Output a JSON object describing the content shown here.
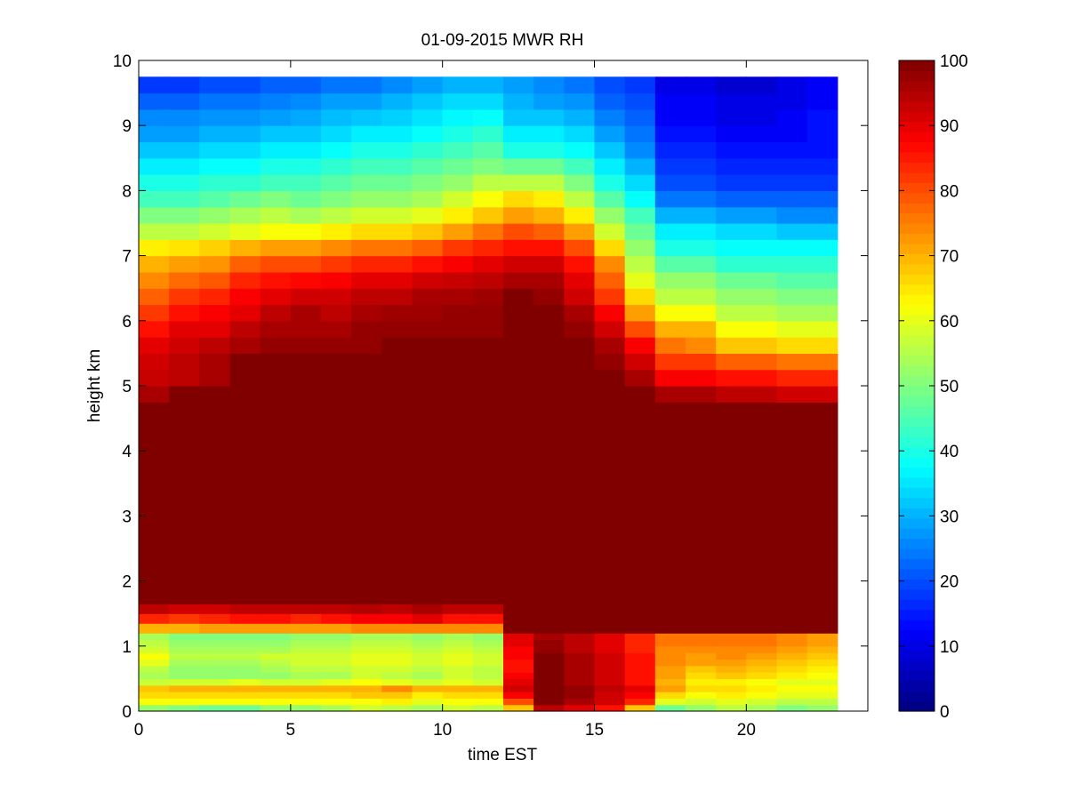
{
  "chart_data": {
    "type": "heatmap",
    "title": "01-09-2015 MWR RH",
    "xlabel": "time EST",
    "ylabel": "height km",
    "xlim": [
      0,
      24
    ],
    "ylim": [
      0,
      10
    ],
    "xticks": [
      0,
      5,
      10,
      15,
      20
    ],
    "yticks": [
      0,
      1,
      2,
      3,
      4,
      5,
      6,
      7,
      8,
      9,
      10
    ],
    "x_centers": [
      0.5,
      1.5,
      2.5,
      3.5,
      4.5,
      5.5,
      6.5,
      7.5,
      8.5,
      9.5,
      10.5,
      11.5,
      12.5,
      13.5,
      14.5,
      15.5,
      16.5,
      17.5,
      18.5,
      19.5,
      20.5,
      21.5,
      22.5,
      23.5
    ],
    "heights_km": [
      0,
      0.1,
      0.2,
      0.3,
      0.4,
      0.5,
      0.6,
      0.7,
      0.8,
      0.9,
      1.0,
      1.1,
      1.2,
      1.35,
      1.5,
      1.65,
      1.8,
      2.0,
      2.25,
      2.5,
      2.75,
      3.0,
      3.25,
      3.5,
      3.75,
      4.0,
      4.25,
      4.5,
      4.75,
      5.0,
      5.25,
      5.5,
      5.75,
      6.0,
      6.25,
      6.5,
      6.75,
      7.0,
      7.25,
      7.5,
      7.75,
      8.0,
      8.25,
      8.5,
      8.75,
      9.0,
      9.25,
      9.5,
      9.75
    ],
    "value_label": "RH (%)",
    "rh_profiles": [
      [
        52,
        62,
        66,
        68,
        57,
        54,
        56,
        60,
        62,
        58,
        56,
        54,
        70,
        84,
        94,
        100,
        100,
        100,
        100,
        100,
        100,
        100,
        100,
        100,
        100,
        100,
        100,
        100,
        96,
        93,
        92,
        90,
        86,
        82,
        78,
        74,
        70,
        64,
        56,
        50,
        44,
        40,
        36,
        32,
        28,
        26,
        22,
        18,
        18
      ],
      [
        50,
        62,
        66,
        70,
        58,
        52,
        52,
        54,
        56,
        54,
        52,
        50,
        70,
        82,
        92,
        100,
        100,
        100,
        100,
        100,
        100,
        100,
        100,
        100,
        100,
        100,
        100,
        100,
        100,
        94,
        94,
        92,
        90,
        86,
        82,
        77,
        72,
        65,
        56,
        50,
        44,
        40,
        36,
        32,
        28,
        26,
        22,
        18,
        18
      ],
      [
        48,
        62,
        66,
        70,
        58,
        52,
        52,
        54,
        56,
        54,
        52,
        50,
        72,
        84,
        92,
        100,
        100,
        100,
        100,
        100,
        100,
        100,
        100,
        100,
        100,
        100,
        100,
        100,
        100,
        96,
        96,
        94,
        90,
        88,
        84,
        79,
        73,
        67,
        58,
        52,
        46,
        42,
        38,
        34,
        30,
        27,
        24,
        20,
        20
      ],
      [
        48,
        62,
        66,
        70,
        60,
        52,
        52,
        54,
        56,
        54,
        52,
        50,
        72,
        86,
        94,
        100,
        100,
        100,
        100,
        100,
        100,
        100,
        100,
        100,
        100,
        100,
        100,
        100,
        100,
        100,
        100,
        96,
        94,
        90,
        88,
        84,
        78,
        70,
        60,
        54,
        48,
        42,
        38,
        34,
        30,
        27,
        24,
        20,
        20
      ],
      [
        52,
        62,
        66,
        70,
        58,
        52,
        54,
        56,
        58,
        54,
        52,
        50,
        72,
        86,
        94,
        100,
        100,
        100,
        100,
        100,
        100,
        100,
        100,
        100,
        100,
        100,
        100,
        100,
        100,
        100,
        100,
        98,
        96,
        94,
        90,
        86,
        80,
        72,
        62,
        56,
        50,
        44,
        40,
        36,
        32,
        28,
        25,
        22,
        22
      ],
      [
        52,
        62,
        66,
        70,
        58,
        54,
        56,
        58,
        58,
        56,
        54,
        52,
        72,
        84,
        94,
        100,
        100,
        100,
        100,
        100,
        100,
        100,
        100,
        100,
        100,
        100,
        100,
        100,
        100,
        100,
        100,
        98,
        96,
        96,
        92,
        87,
        80,
        72,
        62,
        54,
        48,
        44,
        40,
        36,
        32,
        29,
        26,
        22,
        22
      ],
      [
        54,
        62,
        66,
        70,
        60,
        54,
        56,
        58,
        58,
        56,
        54,
        52,
        72,
        86,
        94,
        100,
        100,
        100,
        100,
        100,
        100,
        100,
        100,
        100,
        100,
        100,
        100,
        100,
        100,
        100,
        100,
        98,
        96,
        94,
        92,
        88,
        82,
        74,
        64,
        56,
        50,
        46,
        42,
        38,
        34,
        31,
        28,
        24,
        24
      ],
      [
        58,
        62,
        68,
        70,
        62,
        58,
        58,
        60,
        60,
        58,
        56,
        54,
        74,
        88,
        95,
        100,
        100,
        100,
        100,
        100,
        100,
        100,
        100,
        100,
        100,
        100,
        100,
        100,
        100,
        100,
        100,
        98,
        98,
        96,
        94,
        90,
        84,
        76,
        66,
        58,
        52,
        48,
        44,
        40,
        36,
        32,
        28,
        24,
        24
      ],
      [
        56,
        64,
        68,
        74,
        60,
        56,
        58,
        60,
        60,
        58,
        56,
        54,
        74,
        88,
        94,
        100,
        100,
        100,
        100,
        100,
        100,
        100,
        100,
        100,
        100,
        100,
        100,
        100,
        100,
        100,
        100,
        100,
        98,
        97,
        94,
        90,
        84,
        76,
        66,
        58,
        52,
        48,
        44,
        40,
        36,
        33,
        30,
        26,
        26
      ],
      [
        54,
        60,
        64,
        70,
        58,
        54,
        56,
        58,
        58,
        56,
        54,
        52,
        74,
        90,
        96,
        100,
        100,
        100,
        100,
        100,
        100,
        100,
        100,
        100,
        100,
        100,
        100,
        100,
        100,
        100,
        100,
        100,
        98,
        97,
        96,
        92,
        86,
        78,
        68,
        60,
        54,
        50,
        46,
        42,
        38,
        35,
        32,
        28,
        28
      ],
      [
        58,
        62,
        66,
        70,
        60,
        58,
        58,
        60,
        60,
        58,
        56,
        54,
        74,
        86,
        94,
        100,
        100,
        100,
        100,
        100,
        100,
        100,
        100,
        100,
        100,
        100,
        100,
        100,
        100,
        100,
        100,
        100,
        98,
        98,
        96,
        93,
        88,
        82,
        72,
        64,
        58,
        52,
        48,
        44,
        40,
        37,
        34,
        30,
        30
      ],
      [
        56,
        62,
        66,
        70,
        58,
        56,
        56,
        58,
        58,
        56,
        54,
        52,
        74,
        86,
        94,
        100,
        100,
        100,
        100,
        100,
        100,
        100,
        100,
        100,
        100,
        100,
        100,
        100,
        100,
        100,
        100,
        100,
        98,
        98,
        97,
        94,
        90,
        84,
        76,
        68,
        62,
        56,
        50,
        46,
        42,
        38,
        34,
        30,
        30
      ],
      [
        68,
        80,
        88,
        92,
        90,
        88,
        86,
        86,
        88,
        88,
        90,
        90,
        100,
        100,
        100,
        100,
        100,
        100,
        100,
        100,
        100,
        100,
        100,
        100,
        100,
        100,
        100,
        100,
        100,
        100,
        100,
        100,
        100,
        100,
        100,
        96,
        92,
        86,
        80,
        72,
        66,
        56,
        48,
        40,
        36,
        32,
        30,
        28,
        28
      ],
      [
        94,
        100,
        100,
        100,
        100,
        100,
        100,
        100,
        100,
        98,
        98,
        96,
        100,
        100,
        100,
        100,
        100,
        100,
        100,
        100,
        100,
        100,
        100,
        100,
        100,
        100,
        100,
        100,
        100,
        100,
        100,
        100,
        100,
        100,
        98,
        96,
        92,
        86,
        78,
        70,
        64,
        56,
        48,
        40,
        36,
        32,
        28,
        26,
        26
      ],
      [
        90,
        96,
        98,
        98,
        96,
        96,
        96,
        96,
        96,
        94,
        94,
        94,
        100,
        100,
        100,
        100,
        100,
        100,
        100,
        100,
        100,
        100,
        100,
        100,
        100,
        100,
        100,
        100,
        100,
        100,
        100,
        100,
        98,
        96,
        92,
        90,
        86,
        80,
        72,
        64,
        56,
        50,
        44,
        38,
        34,
        30,
        27,
        24,
        24
      ],
      [
        86,
        92,
        92,
        94,
        92,
        92,
        92,
        92,
        92,
        90,
        90,
        90,
        100,
        100,
        100,
        100,
        100,
        100,
        100,
        100,
        100,
        100,
        100,
        100,
        100,
        100,
        100,
        100,
        100,
        100,
        98,
        96,
        92,
        88,
        82,
        78,
        74,
        66,
        58,
        52,
        46,
        40,
        36,
        32,
        28,
        25,
        22,
        20,
        20
      ],
      [
        68,
        84,
        88,
        90,
        86,
        86,
        86,
        86,
        86,
        84,
        84,
        84,
        100,
        100,
        100,
        100,
        100,
        100,
        100,
        100,
        100,
        100,
        100,
        100,
        100,
        100,
        100,
        100,
        100,
        96,
        92,
        88,
        80,
        72,
        66,
        60,
        56,
        52,
        48,
        44,
        38,
        34,
        30,
        26,
        24,
        22,
        20,
        18,
        18
      ],
      [
        48,
        60,
        66,
        72,
        70,
        72,
        72,
        74,
        74,
        74,
        76,
        76,
        100,
        100,
        100,
        100,
        100,
        100,
        100,
        100,
        100,
        100,
        100,
        100,
        100,
        100,
        100,
        100,
        96,
        88,
        82,
        76,
        70,
        62,
        56,
        52,
        46,
        40,
        36,
        30,
        24,
        20,
        18,
        16,
        14,
        12,
        12,
        10,
        10
      ],
      [
        52,
        58,
        62,
        66,
        64,
        66,
        68,
        72,
        72,
        74,
        76,
        76,
        100,
        100,
        100,
        100,
        100,
        100,
        100,
        100,
        100,
        100,
        100,
        100,
        100,
        100,
        100,
        100,
        96,
        88,
        82,
        74,
        70,
        62,
        56,
        52,
        46,
        40,
        36,
        30,
        24,
        20,
        18,
        16,
        14,
        12,
        12,
        10,
        10
      ],
      [
        56,
        60,
        64,
        66,
        64,
        68,
        70,
        72,
        74,
        74,
        76,
        76,
        100,
        100,
        100,
        100,
        100,
        100,
        100,
        100,
        100,
        100,
        100,
        100,
        100,
        100,
        100,
        100,
        94,
        86,
        78,
        68,
        62,
        56,
        52,
        48,
        42,
        38,
        34,
        28,
        22,
        18,
        16,
        14,
        12,
        10,
        10,
        8,
        8
      ],
      [
        54,
        58,
        62,
        64,
        62,
        66,
        68,
        70,
        72,
        74,
        76,
        76,
        100,
        100,
        100,
        100,
        100,
        100,
        100,
        100,
        100,
        100,
        100,
        100,
        100,
        100,
        100,
        100,
        94,
        86,
        78,
        68,
        62,
        56,
        52,
        48,
        42,
        38,
        34,
        28,
        22,
        18,
        16,
        14,
        12,
        10,
        10,
        8,
        8
      ],
      [
        50,
        56,
        60,
        62,
        60,
        64,
        66,
        68,
        70,
        72,
        74,
        74,
        100,
        100,
        100,
        100,
        100,
        100,
        100,
        100,
        100,
        100,
        100,
        100,
        100,
        100,
        100,
        100,
        92,
        84,
        76,
        66,
        60,
        54,
        50,
        46,
        42,
        38,
        32,
        26,
        22,
        18,
        16,
        14,
        12,
        12,
        10,
        10,
        10
      ],
      [
        52,
        56,
        60,
        62,
        60,
        62,
        64,
        66,
        68,
        70,
        72,
        72,
        100,
        100,
        100,
        100,
        100,
        100,
        100,
        100,
        100,
        100,
        100,
        100,
        100,
        100,
        100,
        100,
        92,
        84,
        76,
        66,
        60,
        54,
        50,
        46,
        42,
        38,
        32,
        26,
        22,
        18,
        16,
        14,
        14,
        14,
        12,
        12,
        12
      ],
      [
        52,
        56,
        60,
        62,
        60,
        62,
        64,
        66,
        68,
        70,
        72,
        72,
        100,
        100,
        100,
        100,
        100,
        100,
        100,
        100,
        100,
        100,
        100,
        100,
        100,
        100,
        100,
        100,
        92,
        84,
        76,
        66,
        60,
        54,
        50,
        46,
        42,
        38,
        32,
        26,
        22,
        18,
        16,
        14,
        14,
        14,
        12,
        12,
        12
      ]
    ],
    "colorbar": {
      "colormap": "jet",
      "clim": [
        0,
        100
      ],
      "ticks": [
        0,
        10,
        20,
        30,
        40,
        50,
        60,
        70,
        80,
        90,
        100
      ]
    },
    "grid": false
  }
}
